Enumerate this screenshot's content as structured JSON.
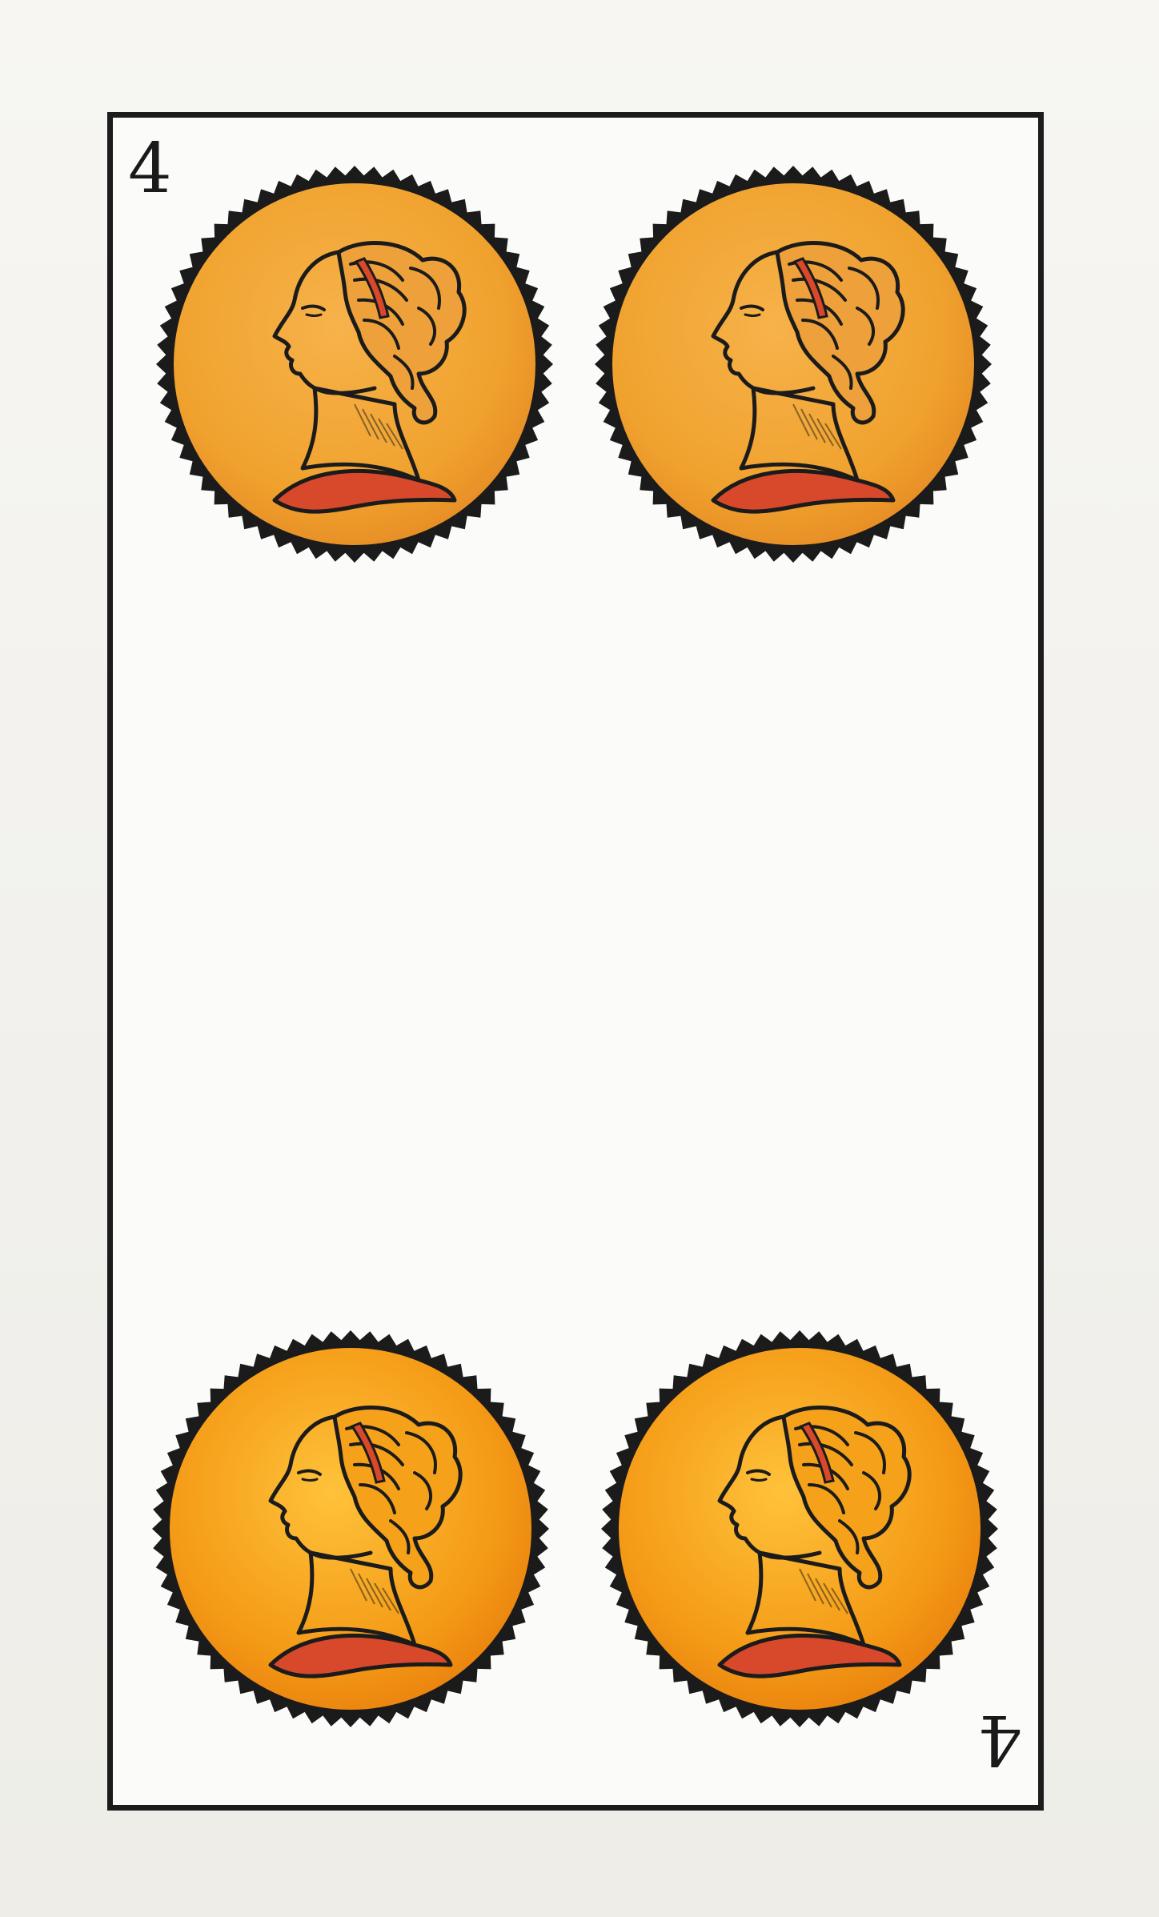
{
  "card": {
    "rank_top": "4",
    "rank_bottom": "4",
    "suit_icon": "coin-with-female-profile-icon",
    "coin_count": 4
  },
  "colors": {
    "coin_fill_top": "#f0a22e",
    "coin_fill_bottom": "#f49a16",
    "coin_edge": "#1b1b1b",
    "drape": "#d8482a",
    "frame": "#1c1c1c"
  }
}
